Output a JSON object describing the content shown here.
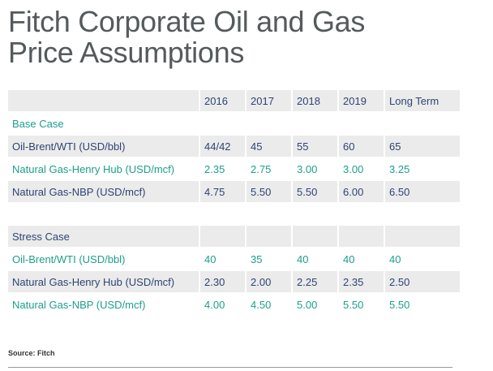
{
  "header": {
    "title": "Fitch Corporate Oil and Gas Price Assumptions"
  },
  "table": {
    "columns": [
      "2016",
      "2017",
      "2018",
      "2019",
      "Long Term"
    ],
    "sections": [
      {
        "name": "Base Case",
        "rows": [
          {
            "label": "Oil-Brent/WTI (USD/bbl)",
            "values": [
              "44/42",
              "45",
              "55",
              "60",
              "65"
            ]
          },
          {
            "label": "Natural Gas-Henry Hub (USD/mcf)",
            "values": [
              "2.35",
              "2.75",
              "3.00",
              "3.00",
              "3.25"
            ]
          },
          {
            "label": "Natural Gas-NBP (USD/mcf)",
            "values": [
              "4.75",
              "5.50",
              "5.50",
              "6.00",
              "6.50"
            ]
          }
        ]
      },
      {
        "name": "Stress Case",
        "rows": [
          {
            "label": "Oil-Brent/WTI (USD/bbl)",
            "values": [
              "40",
              "35",
              "40",
              "40",
              "40"
            ]
          },
          {
            "label": "Natural Gas-Henry Hub (USD/mcf)",
            "values": [
              "2.30",
              "2.00",
              "2.25",
              "2.35",
              "2.50"
            ]
          },
          {
            "label": "Natural Gas-NBP (USD/mcf)",
            "values": [
              "4.00",
              "4.50",
              "5.00",
              "5.50",
              "5.50"
            ]
          }
        ]
      }
    ]
  },
  "footer": {
    "source": "Source: Fitch"
  }
}
